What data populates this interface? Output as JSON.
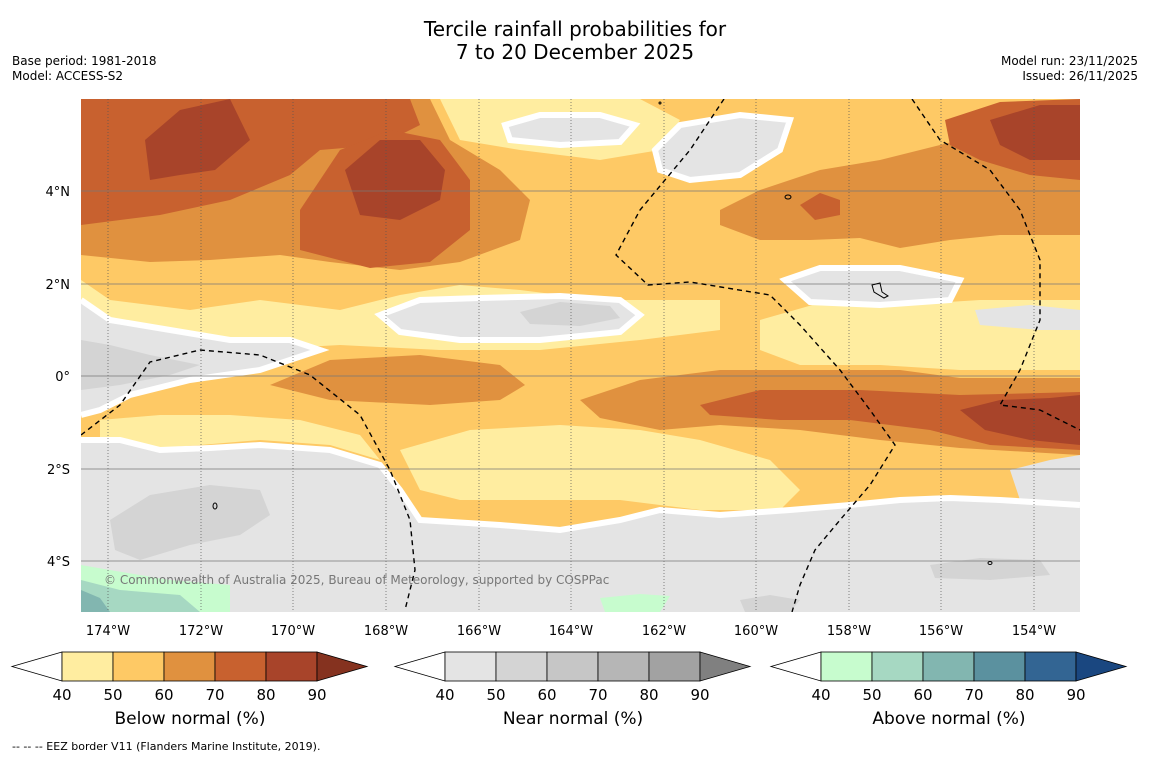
{
  "title": {
    "line1": "Tercile rainfall probabilities for",
    "line2": "7 to 20 December 2025"
  },
  "meta_left": {
    "base_period": "Base period: 1981-2018",
    "model": "Model: ACCESS-S2"
  },
  "meta_right": {
    "model_run": "Model run: 23/11/2025",
    "issued": "Issued: 26/11/2025"
  },
  "map": {
    "x_ticks": [
      "174°W",
      "172°W",
      "170°W",
      "168°W",
      "166°W",
      "164°W",
      "162°W",
      "160°W",
      "158°W",
      "156°W",
      "154°W"
    ],
    "y_ticks": [
      "4°N",
      "2°N",
      "0°",
      "2°S",
      "4°S"
    ],
    "copyright": "© Commonwealth of Australia 2025, Bureau of Meteorology, supported by COSPPac"
  },
  "colorbars": [
    {
      "label": "Below normal (%)",
      "ticks": [
        "40",
        "50",
        "60",
        "70",
        "80",
        "90"
      ],
      "colors": [
        "#ffeda0",
        "#fec965",
        "#e0913f",
        "#c8612f",
        "#a8442a"
      ],
      "end_color": "#85321f"
    },
    {
      "label": "Near normal (%)",
      "ticks": [
        "40",
        "50",
        "60",
        "70",
        "80",
        "90"
      ],
      "colors": [
        "#e4e4e4",
        "#d4d4d4",
        "#c6c6c6",
        "#b6b6b6",
        "#a2a2a2"
      ],
      "end_color": "#808080"
    },
    {
      "label": "Above normal (%)",
      "ticks": [
        "40",
        "50",
        "60",
        "70",
        "80",
        "90"
      ],
      "colors": [
        "#c7fcce",
        "#a6d8c2",
        "#82b6b0",
        "#5b919f",
        "#336593"
      ],
      "end_color": "#1a4780"
    }
  ],
  "footer": "--  --  -- EEZ border V11 (Flanders Marine Institute, 2019)."
}
